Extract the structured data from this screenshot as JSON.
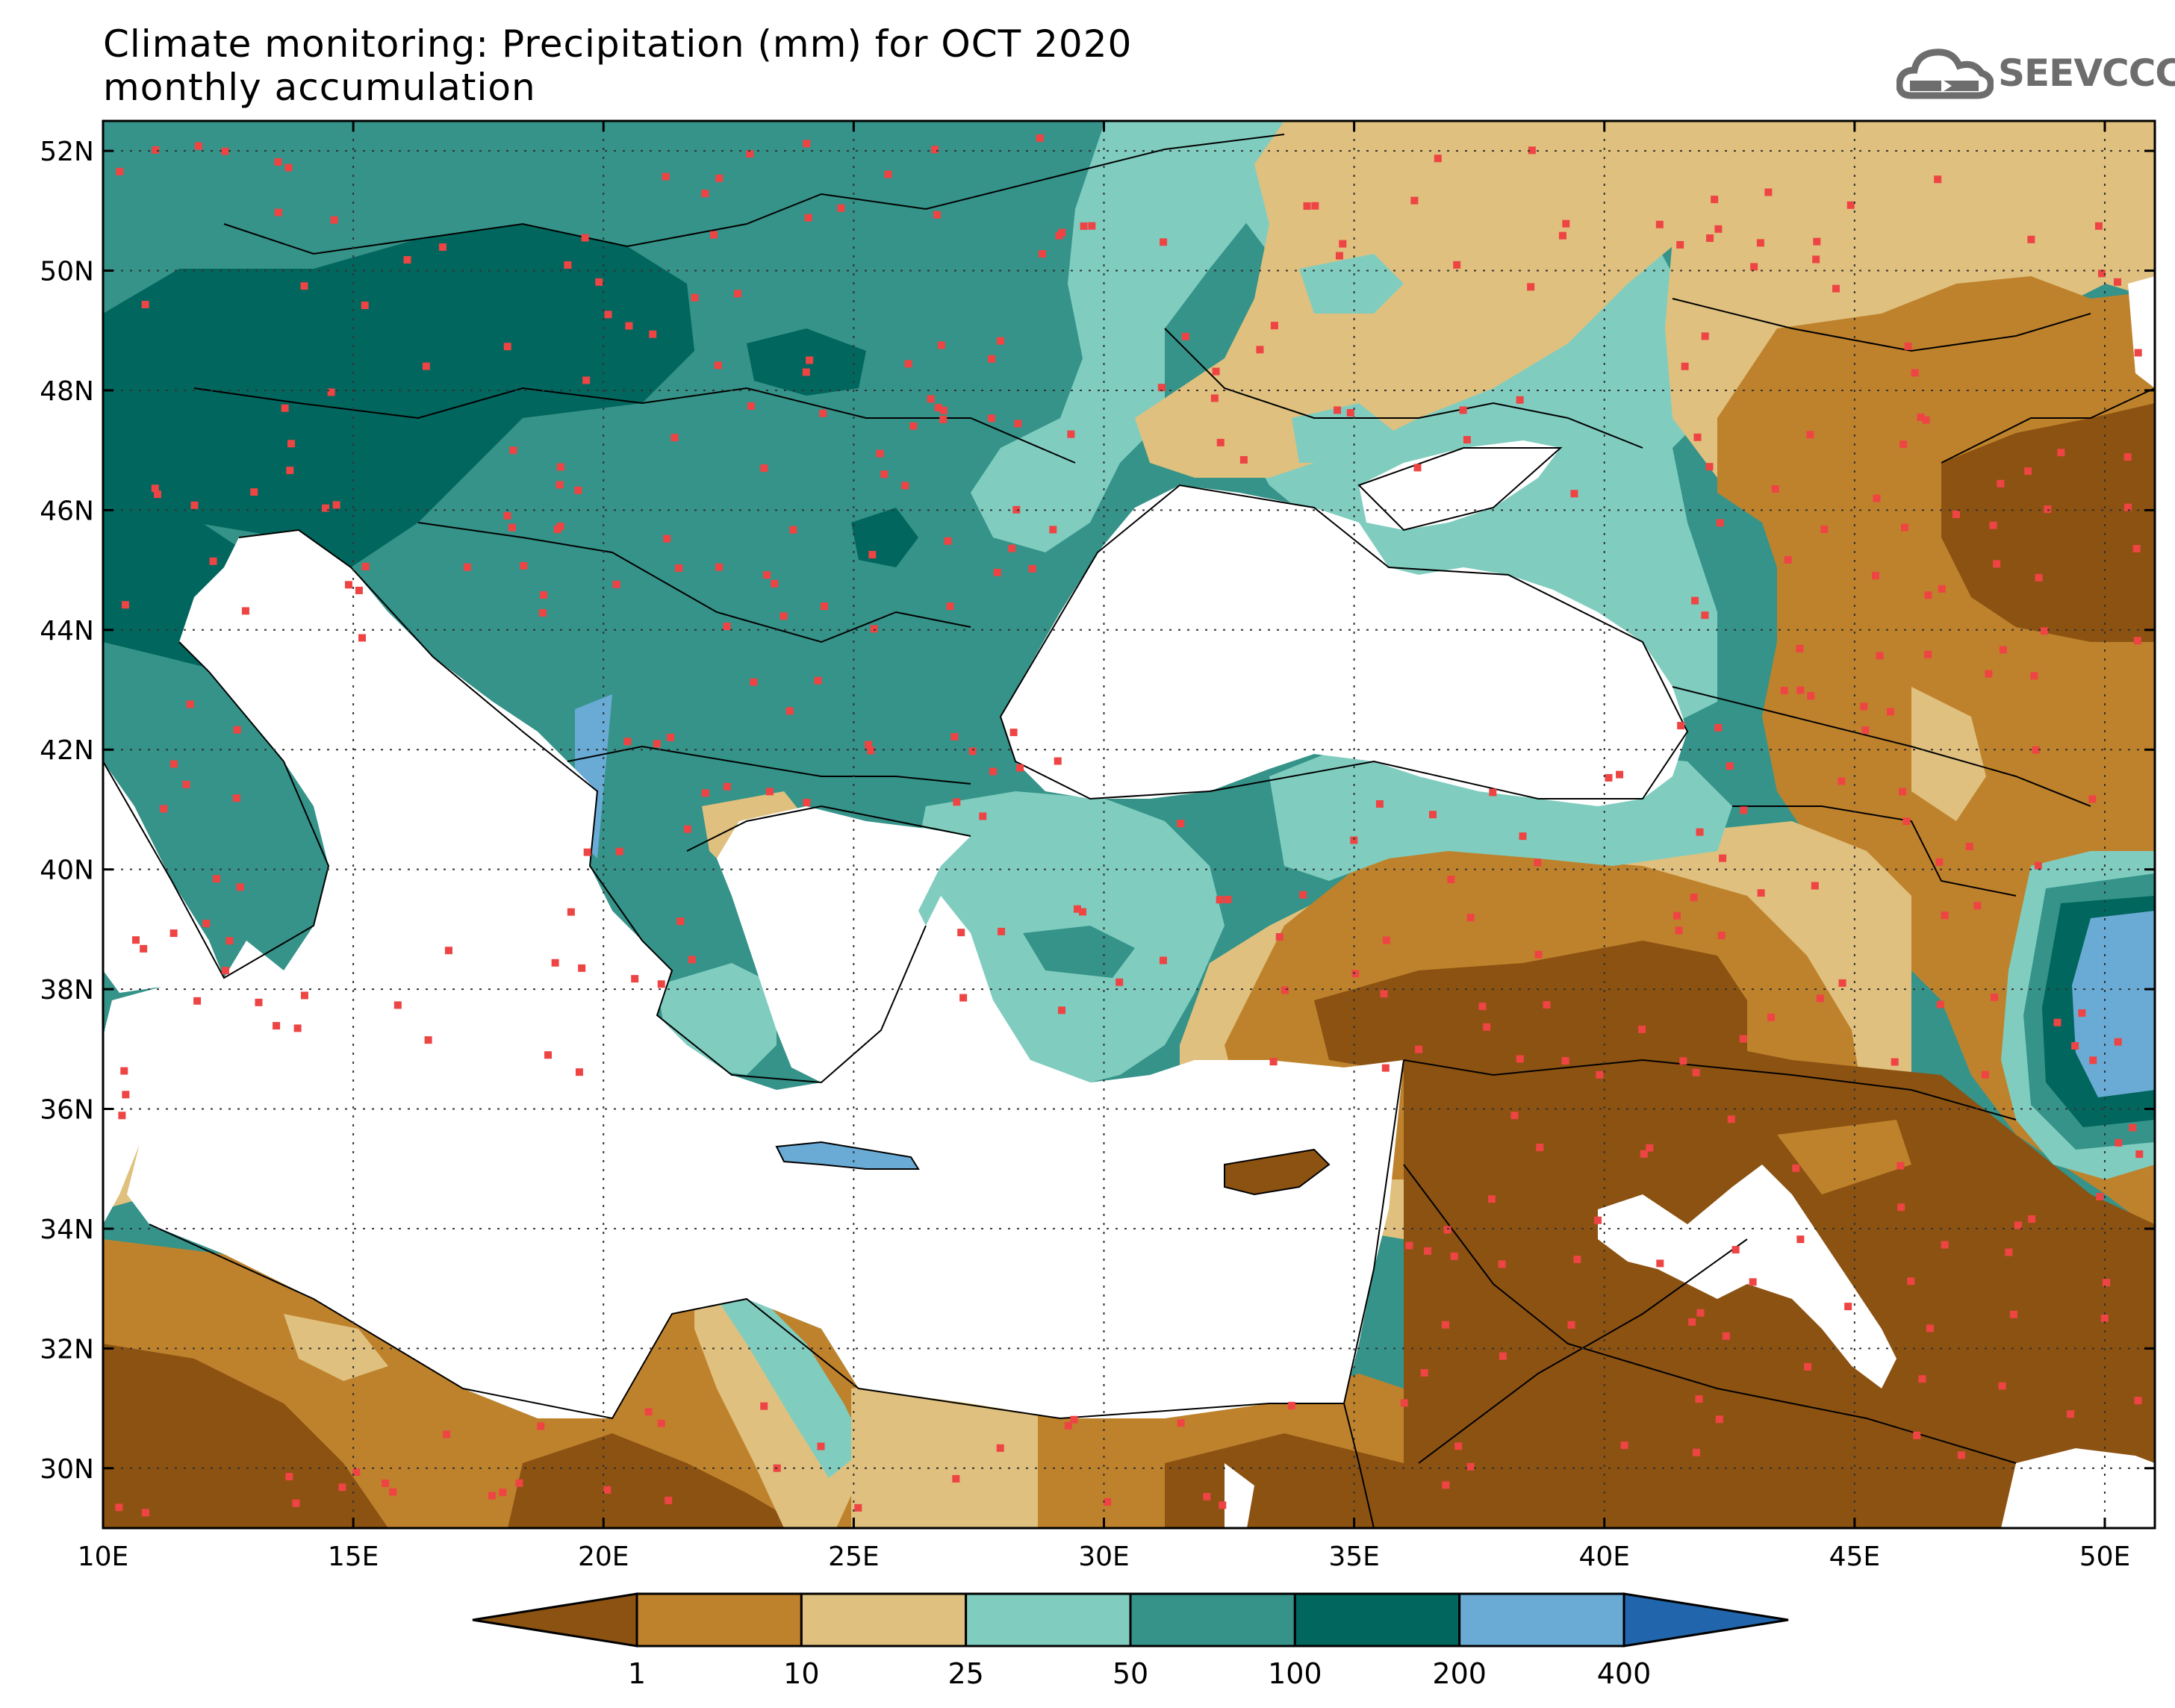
{
  "title": {
    "line1": "Climate monitoring: Precipitation (mm) for OCT 2020",
    "line2": "monthly accumulation"
  },
  "logo": {
    "text": "SEEVCCC",
    "icon": "cloud-logo-icon"
  },
  "map": {
    "region": "Eastern Mediterranean / Black Sea",
    "lon_range": [
      10,
      51
    ],
    "lat_range": [
      29,
      52.5
    ],
    "lon_ticks": [
      "10E",
      "15E",
      "20E",
      "25E",
      "30E",
      "35E",
      "40E",
      "45E",
      "50E"
    ],
    "lat_ticks": [
      "30N",
      "32N",
      "34N",
      "36N",
      "38N",
      "40N",
      "42N",
      "44N",
      "46N",
      "48N",
      "50N",
      "52N"
    ],
    "grid": "dotted",
    "station_marker_color": "#ee4444"
  },
  "legend": {
    "labels": [
      "1",
      "10",
      "25",
      "50",
      "100",
      "200",
      "400"
    ],
    "colors": [
      "#8c5212",
      "#bf822c",
      "#dfc07e",
      "#80cdc0",
      "#359389",
      "#01665e",
      "#6aabd6",
      "#2166ac"
    ]
  }
}
